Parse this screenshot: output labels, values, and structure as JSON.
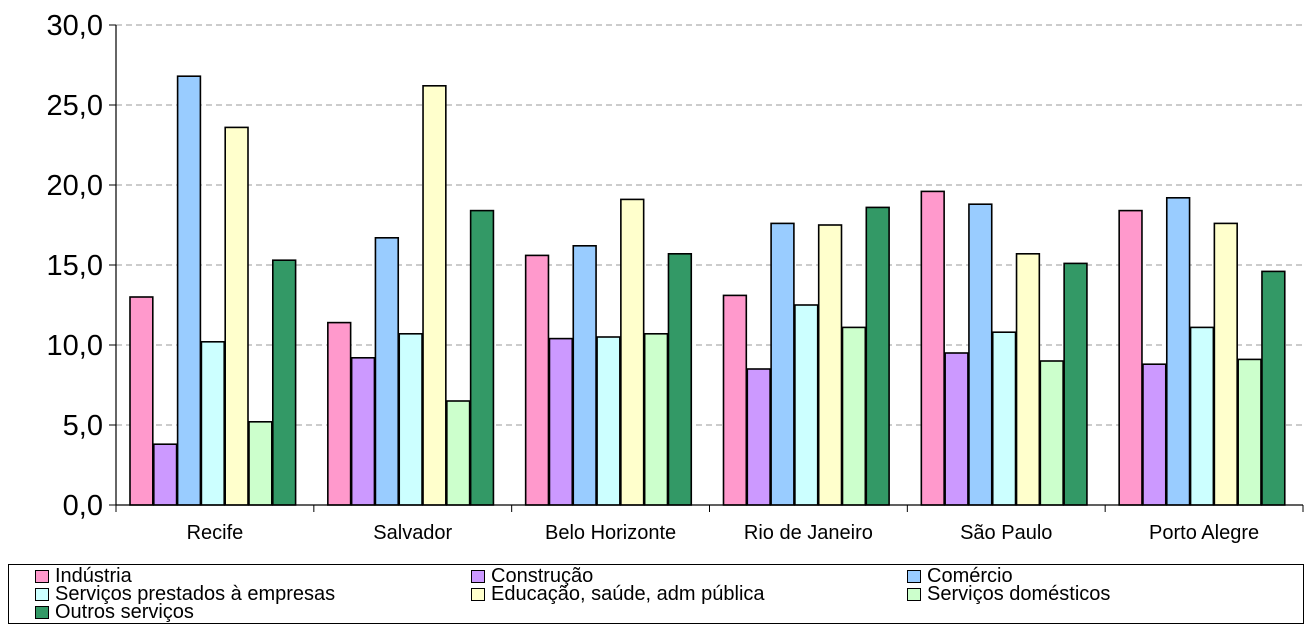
{
  "chart_data": {
    "type": "bar",
    "categories": [
      "Recife",
      "Salvador",
      "Belo Horizonte",
      "Rio de Janeiro",
      "São Paulo",
      "Porto Alegre"
    ],
    "series": [
      {
        "name": "Indústria",
        "color": "#ff99cc",
        "values": [
          13.0,
          11.4,
          15.6,
          13.1,
          19.6,
          18.4
        ]
      },
      {
        "name": "Construção",
        "color": "#cc99ff",
        "values": [
          3.8,
          9.2,
          10.4,
          8.5,
          9.5,
          8.8
        ]
      },
      {
        "name": "Comércio",
        "color": "#99ccff",
        "values": [
          26.8,
          16.7,
          16.2,
          17.6,
          18.8,
          19.2
        ]
      },
      {
        "name": "Serviços prestados à empresas",
        "color": "#ccffff",
        "values": [
          10.2,
          10.7,
          10.5,
          12.5,
          10.8,
          11.1
        ]
      },
      {
        "name": "Educação, saúde, adm pública",
        "color": "#ffffcc",
        "values": [
          23.6,
          26.2,
          19.1,
          17.5,
          15.7,
          17.6
        ]
      },
      {
        "name": "Serviços domésticos",
        "color": "#ccffcc",
        "values": [
          5.2,
          6.5,
          10.7,
          11.1,
          9.0,
          9.1
        ]
      },
      {
        "name": "Outros serviços",
        "color": "#339966",
        "values": [
          15.3,
          18.4,
          15.7,
          18.6,
          15.1,
          14.6
        ]
      }
    ],
    "yticks": [
      "0,0",
      "5,0",
      "10,0",
      "15,0",
      "20,0",
      "25,0",
      "30,0"
    ],
    "ylim": [
      0,
      30
    ],
    "grid": true,
    "legend_position": "bottom"
  }
}
